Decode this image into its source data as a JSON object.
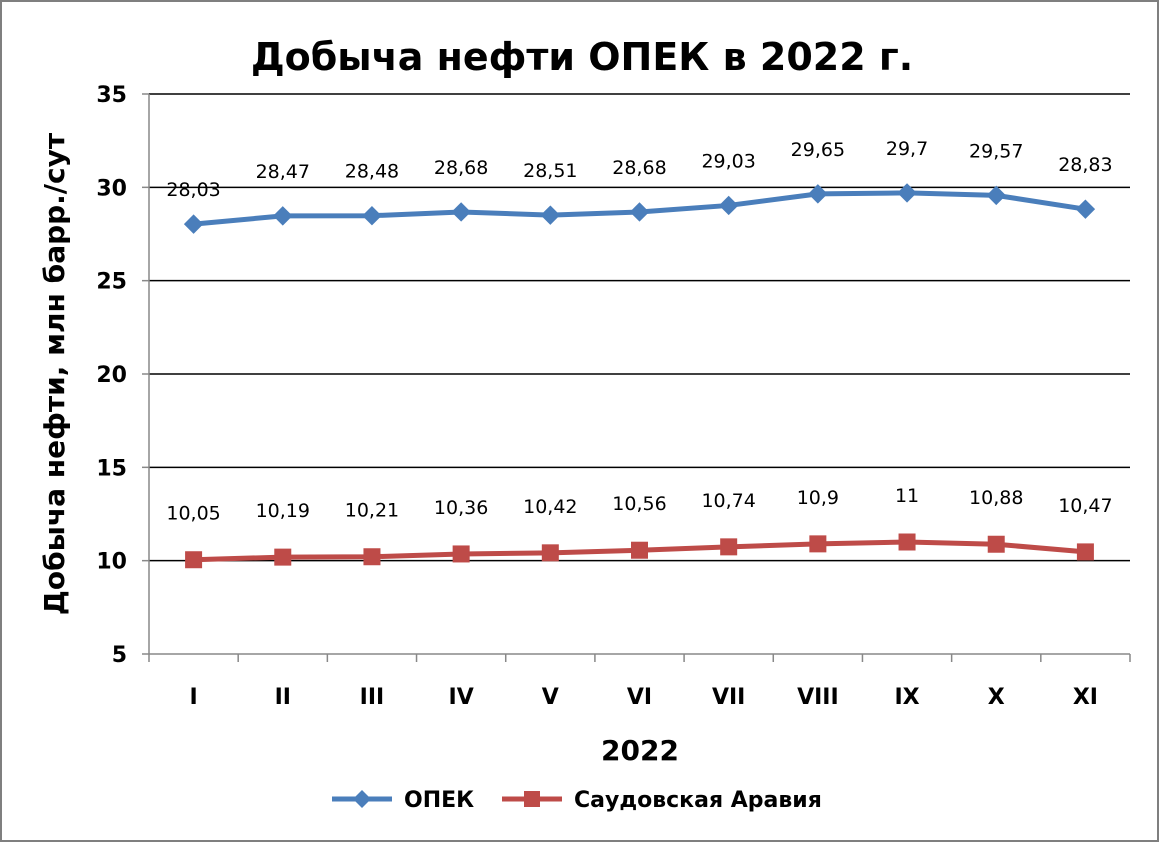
{
  "chart_data": {
    "type": "line",
    "title": "Добыча нефти ОПЕК в 2022 г.",
    "xlabel": "2022",
    "ylabel": "Добыча нефти, млн барр./сут",
    "ylim": [
      5,
      35
    ],
    "yticks": [
      "5",
      "10",
      "15",
      "20",
      "25",
      "30",
      "35"
    ],
    "grid": true,
    "legend_position": "bottom",
    "categories": [
      "I",
      "II",
      "III",
      "IV",
      "V",
      "VI",
      "VII",
      "VIII",
      "IX",
      "X",
      "XI"
    ],
    "series": [
      {
        "name": "ОПЕК",
        "color": "#4a7ebb",
        "marker": "diamond",
        "values": [
          28.03,
          28.47,
          28.48,
          28.68,
          28.51,
          28.68,
          29.03,
          29.65,
          29.7,
          29.57,
          28.83
        ],
        "labels": [
          "28,03",
          "28,47",
          "28,48",
          "28,68",
          "28,51",
          "28,68",
          "29,03",
          "29,65",
          "29,7",
          "29,57",
          "28,83"
        ]
      },
      {
        "name": "Саудовская Аравия",
        "color": "#be4b48",
        "marker": "square",
        "values": [
          10.05,
          10.19,
          10.21,
          10.36,
          10.42,
          10.56,
          10.74,
          10.9,
          11,
          10.88,
          10.47
        ],
        "labels": [
          "10,05",
          "10,19",
          "10,21",
          "10,36",
          "10,42",
          "10,56",
          "10,74",
          "10,9",
          "11",
          "10,88",
          "10,47"
        ]
      }
    ]
  }
}
